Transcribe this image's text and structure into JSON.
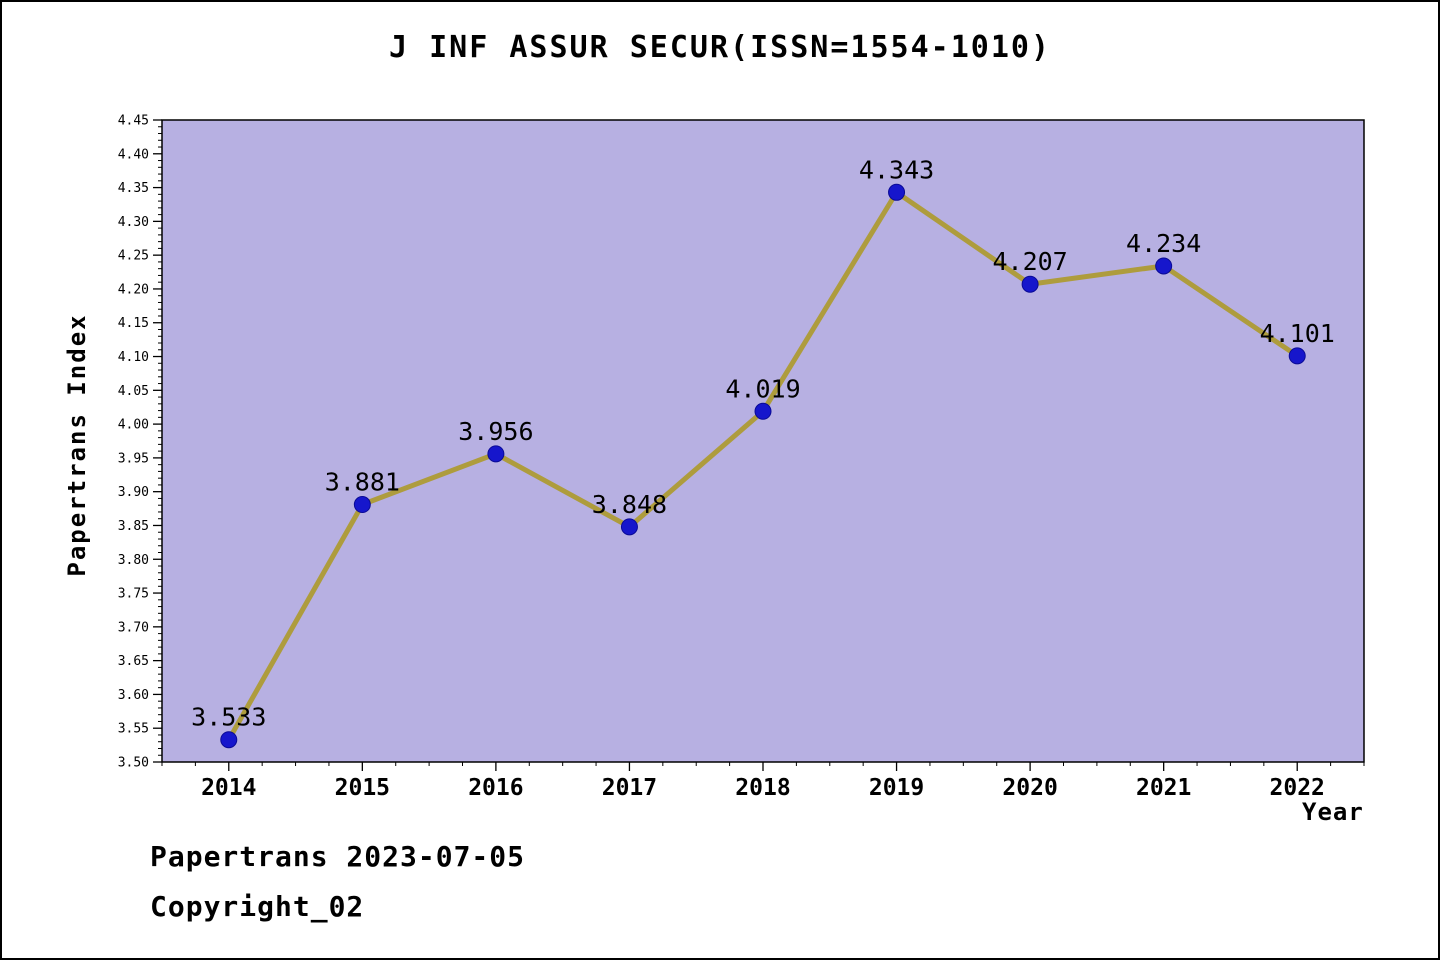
{
  "title": "J INF ASSUR SECUR(ISSN=1554-1010)",
  "footer": {
    "source": "Papertrans 2023-07-05",
    "copyright": "Copyright_02"
  },
  "chart_data": {
    "type": "line",
    "title": "J INF ASSUR SECUR(ISSN=1554-1010)",
    "xlabel": "Year",
    "ylabel": "Papertrans Index",
    "x": [
      2014,
      2015,
      2016,
      2017,
      2018,
      2019,
      2020,
      2021,
      2022
    ],
    "values": [
      3.533,
      3.881,
      3.956,
      3.848,
      4.019,
      4.343,
      4.207,
      4.234,
      4.101
    ],
    "point_labels": [
      "3.533",
      "3.881",
      "3.956",
      "3.848",
      "4.019",
      "4.343",
      "4.207",
      "4.234",
      "4.101"
    ],
    "series_name": "Papertrans Index",
    "ylim": [
      3.5,
      4.45
    ],
    "xlim": [
      2013.5,
      2022.5
    ],
    "ytick_step": 0.05,
    "ytick_minor_step": 0.01,
    "xtick_minor_step": 0.25,
    "grid": false,
    "legend": null,
    "colors": {
      "line": "#ae9c3d",
      "marker": "#1616cc",
      "marker_edge": "#0a0a96",
      "plot_bg": "#b7b0e2",
      "frame": "#000000",
      "text": "#000000"
    }
  }
}
